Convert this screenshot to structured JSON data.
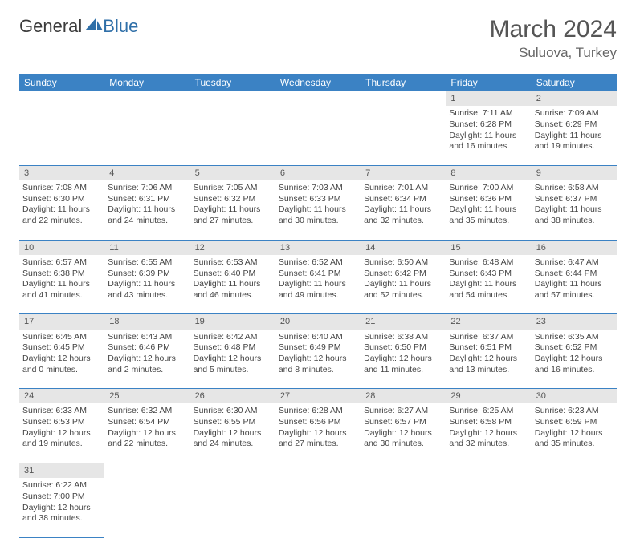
{
  "logo": {
    "word1": "General",
    "word2": "Blue",
    "word1_color": "#4a4a4a",
    "word2_color": "#2f6fa8",
    "sail_color": "#2f6fa8"
  },
  "title": "March 2024",
  "location": "Suluova, Turkey",
  "colors": {
    "header_bg": "#3b82c4",
    "header_text": "#ffffff",
    "daynum_bg": "#e6e6e6",
    "rule": "#3b82c4"
  },
  "weekdays": [
    "Sunday",
    "Monday",
    "Tuesday",
    "Wednesday",
    "Thursday",
    "Friday",
    "Saturday"
  ],
  "weeks": [
    {
      "nums": [
        "",
        "",
        "",
        "",
        "",
        "1",
        "2"
      ],
      "cells": [
        null,
        null,
        null,
        null,
        null,
        {
          "sunrise": "Sunrise: 7:11 AM",
          "sunset": "Sunset: 6:28 PM",
          "daylight": "Daylight: 11 hours and 16 minutes."
        },
        {
          "sunrise": "Sunrise: 7:09 AM",
          "sunset": "Sunset: 6:29 PM",
          "daylight": "Daylight: 11 hours and 19 minutes."
        }
      ]
    },
    {
      "nums": [
        "3",
        "4",
        "5",
        "6",
        "7",
        "8",
        "9"
      ],
      "cells": [
        {
          "sunrise": "Sunrise: 7:08 AM",
          "sunset": "Sunset: 6:30 PM",
          "daylight": "Daylight: 11 hours and 22 minutes."
        },
        {
          "sunrise": "Sunrise: 7:06 AM",
          "sunset": "Sunset: 6:31 PM",
          "daylight": "Daylight: 11 hours and 24 minutes."
        },
        {
          "sunrise": "Sunrise: 7:05 AM",
          "sunset": "Sunset: 6:32 PM",
          "daylight": "Daylight: 11 hours and 27 minutes."
        },
        {
          "sunrise": "Sunrise: 7:03 AM",
          "sunset": "Sunset: 6:33 PM",
          "daylight": "Daylight: 11 hours and 30 minutes."
        },
        {
          "sunrise": "Sunrise: 7:01 AM",
          "sunset": "Sunset: 6:34 PM",
          "daylight": "Daylight: 11 hours and 32 minutes."
        },
        {
          "sunrise": "Sunrise: 7:00 AM",
          "sunset": "Sunset: 6:36 PM",
          "daylight": "Daylight: 11 hours and 35 minutes."
        },
        {
          "sunrise": "Sunrise: 6:58 AM",
          "sunset": "Sunset: 6:37 PM",
          "daylight": "Daylight: 11 hours and 38 minutes."
        }
      ]
    },
    {
      "nums": [
        "10",
        "11",
        "12",
        "13",
        "14",
        "15",
        "16"
      ],
      "cells": [
        {
          "sunrise": "Sunrise: 6:57 AM",
          "sunset": "Sunset: 6:38 PM",
          "daylight": "Daylight: 11 hours and 41 minutes."
        },
        {
          "sunrise": "Sunrise: 6:55 AM",
          "sunset": "Sunset: 6:39 PM",
          "daylight": "Daylight: 11 hours and 43 minutes."
        },
        {
          "sunrise": "Sunrise: 6:53 AM",
          "sunset": "Sunset: 6:40 PM",
          "daylight": "Daylight: 11 hours and 46 minutes."
        },
        {
          "sunrise": "Sunrise: 6:52 AM",
          "sunset": "Sunset: 6:41 PM",
          "daylight": "Daylight: 11 hours and 49 minutes."
        },
        {
          "sunrise": "Sunrise: 6:50 AM",
          "sunset": "Sunset: 6:42 PM",
          "daylight": "Daylight: 11 hours and 52 minutes."
        },
        {
          "sunrise": "Sunrise: 6:48 AM",
          "sunset": "Sunset: 6:43 PM",
          "daylight": "Daylight: 11 hours and 54 minutes."
        },
        {
          "sunrise": "Sunrise: 6:47 AM",
          "sunset": "Sunset: 6:44 PM",
          "daylight": "Daylight: 11 hours and 57 minutes."
        }
      ]
    },
    {
      "nums": [
        "17",
        "18",
        "19",
        "20",
        "21",
        "22",
        "23"
      ],
      "cells": [
        {
          "sunrise": "Sunrise: 6:45 AM",
          "sunset": "Sunset: 6:45 PM",
          "daylight": "Daylight: 12 hours and 0 minutes."
        },
        {
          "sunrise": "Sunrise: 6:43 AM",
          "sunset": "Sunset: 6:46 PM",
          "daylight": "Daylight: 12 hours and 2 minutes."
        },
        {
          "sunrise": "Sunrise: 6:42 AM",
          "sunset": "Sunset: 6:48 PM",
          "daylight": "Daylight: 12 hours and 5 minutes."
        },
        {
          "sunrise": "Sunrise: 6:40 AM",
          "sunset": "Sunset: 6:49 PM",
          "daylight": "Daylight: 12 hours and 8 minutes."
        },
        {
          "sunrise": "Sunrise: 6:38 AM",
          "sunset": "Sunset: 6:50 PM",
          "daylight": "Daylight: 12 hours and 11 minutes."
        },
        {
          "sunrise": "Sunrise: 6:37 AM",
          "sunset": "Sunset: 6:51 PM",
          "daylight": "Daylight: 12 hours and 13 minutes."
        },
        {
          "sunrise": "Sunrise: 6:35 AM",
          "sunset": "Sunset: 6:52 PM",
          "daylight": "Daylight: 12 hours and 16 minutes."
        }
      ]
    },
    {
      "nums": [
        "24",
        "25",
        "26",
        "27",
        "28",
        "29",
        "30"
      ],
      "cells": [
        {
          "sunrise": "Sunrise: 6:33 AM",
          "sunset": "Sunset: 6:53 PM",
          "daylight": "Daylight: 12 hours and 19 minutes."
        },
        {
          "sunrise": "Sunrise: 6:32 AM",
          "sunset": "Sunset: 6:54 PM",
          "daylight": "Daylight: 12 hours and 22 minutes."
        },
        {
          "sunrise": "Sunrise: 6:30 AM",
          "sunset": "Sunset: 6:55 PM",
          "daylight": "Daylight: 12 hours and 24 minutes."
        },
        {
          "sunrise": "Sunrise: 6:28 AM",
          "sunset": "Sunset: 6:56 PM",
          "daylight": "Daylight: 12 hours and 27 minutes."
        },
        {
          "sunrise": "Sunrise: 6:27 AM",
          "sunset": "Sunset: 6:57 PM",
          "daylight": "Daylight: 12 hours and 30 minutes."
        },
        {
          "sunrise": "Sunrise: 6:25 AM",
          "sunset": "Sunset: 6:58 PM",
          "daylight": "Daylight: 12 hours and 32 minutes."
        },
        {
          "sunrise": "Sunrise: 6:23 AM",
          "sunset": "Sunset: 6:59 PM",
          "daylight": "Daylight: 12 hours and 35 minutes."
        }
      ]
    },
    {
      "nums": [
        "31",
        "",
        "",
        "",
        "",
        "",
        ""
      ],
      "cells": [
        {
          "sunrise": "Sunrise: 6:22 AM",
          "sunset": "Sunset: 7:00 PM",
          "daylight": "Daylight: 12 hours and 38 minutes."
        },
        null,
        null,
        null,
        null,
        null,
        null
      ]
    }
  ]
}
